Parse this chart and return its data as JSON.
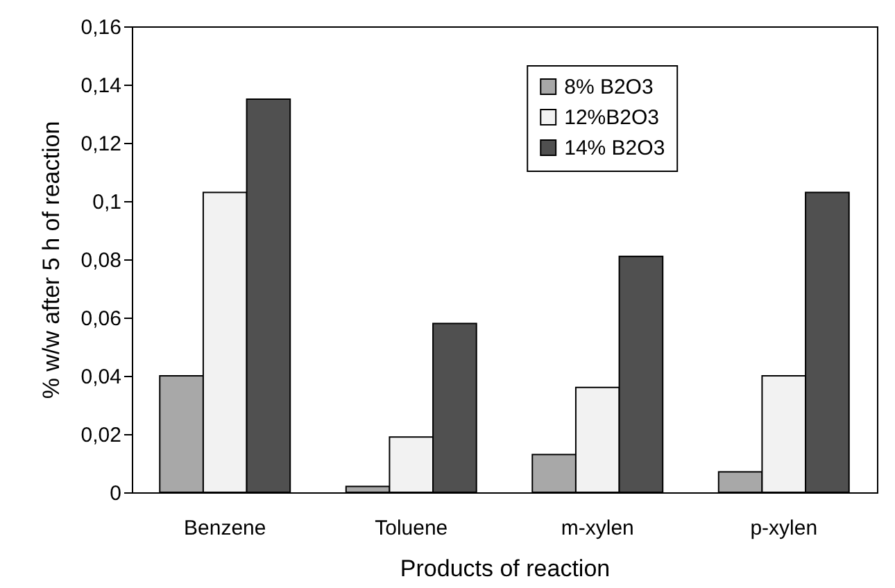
{
  "chart_data": {
    "type": "bar",
    "xlabel": "Products of reaction",
    "ylabel": "% w/w after 5 h of reaction",
    "categories": [
      "Benzene",
      "Toluene",
      "m-xylen",
      "p-xylen"
    ],
    "series": [
      {
        "name": "8% B2O3",
        "color": "#a8a8a8",
        "values": [
          0.04,
          0.002,
          0.013,
          0.007
        ]
      },
      {
        "name": "12%B2O3",
        "color": "#f2f2f2",
        "values": [
          0.103,
          0.019,
          0.036,
          0.04
        ]
      },
      {
        "name": "14% B2O3",
        "color": "#505050",
        "values": [
          0.135,
          0.058,
          0.081,
          0.103
        ]
      }
    ],
    "ylim": [
      0,
      0.16
    ],
    "yticks": [
      {
        "value": 0,
        "label": "0"
      },
      {
        "value": 0.02,
        "label": "0,02"
      },
      {
        "value": 0.04,
        "label": "0,04"
      },
      {
        "value": 0.06,
        "label": "0,06"
      },
      {
        "value": 0.08,
        "label": "0,08"
      },
      {
        "value": 0.1,
        "label": "0,1"
      },
      {
        "value": 0.12,
        "label": "0,12"
      },
      {
        "value": 0.14,
        "label": "0,14"
      },
      {
        "value": 0.16,
        "label": "0,16"
      }
    ],
    "grid": false,
    "legend": "top"
  }
}
